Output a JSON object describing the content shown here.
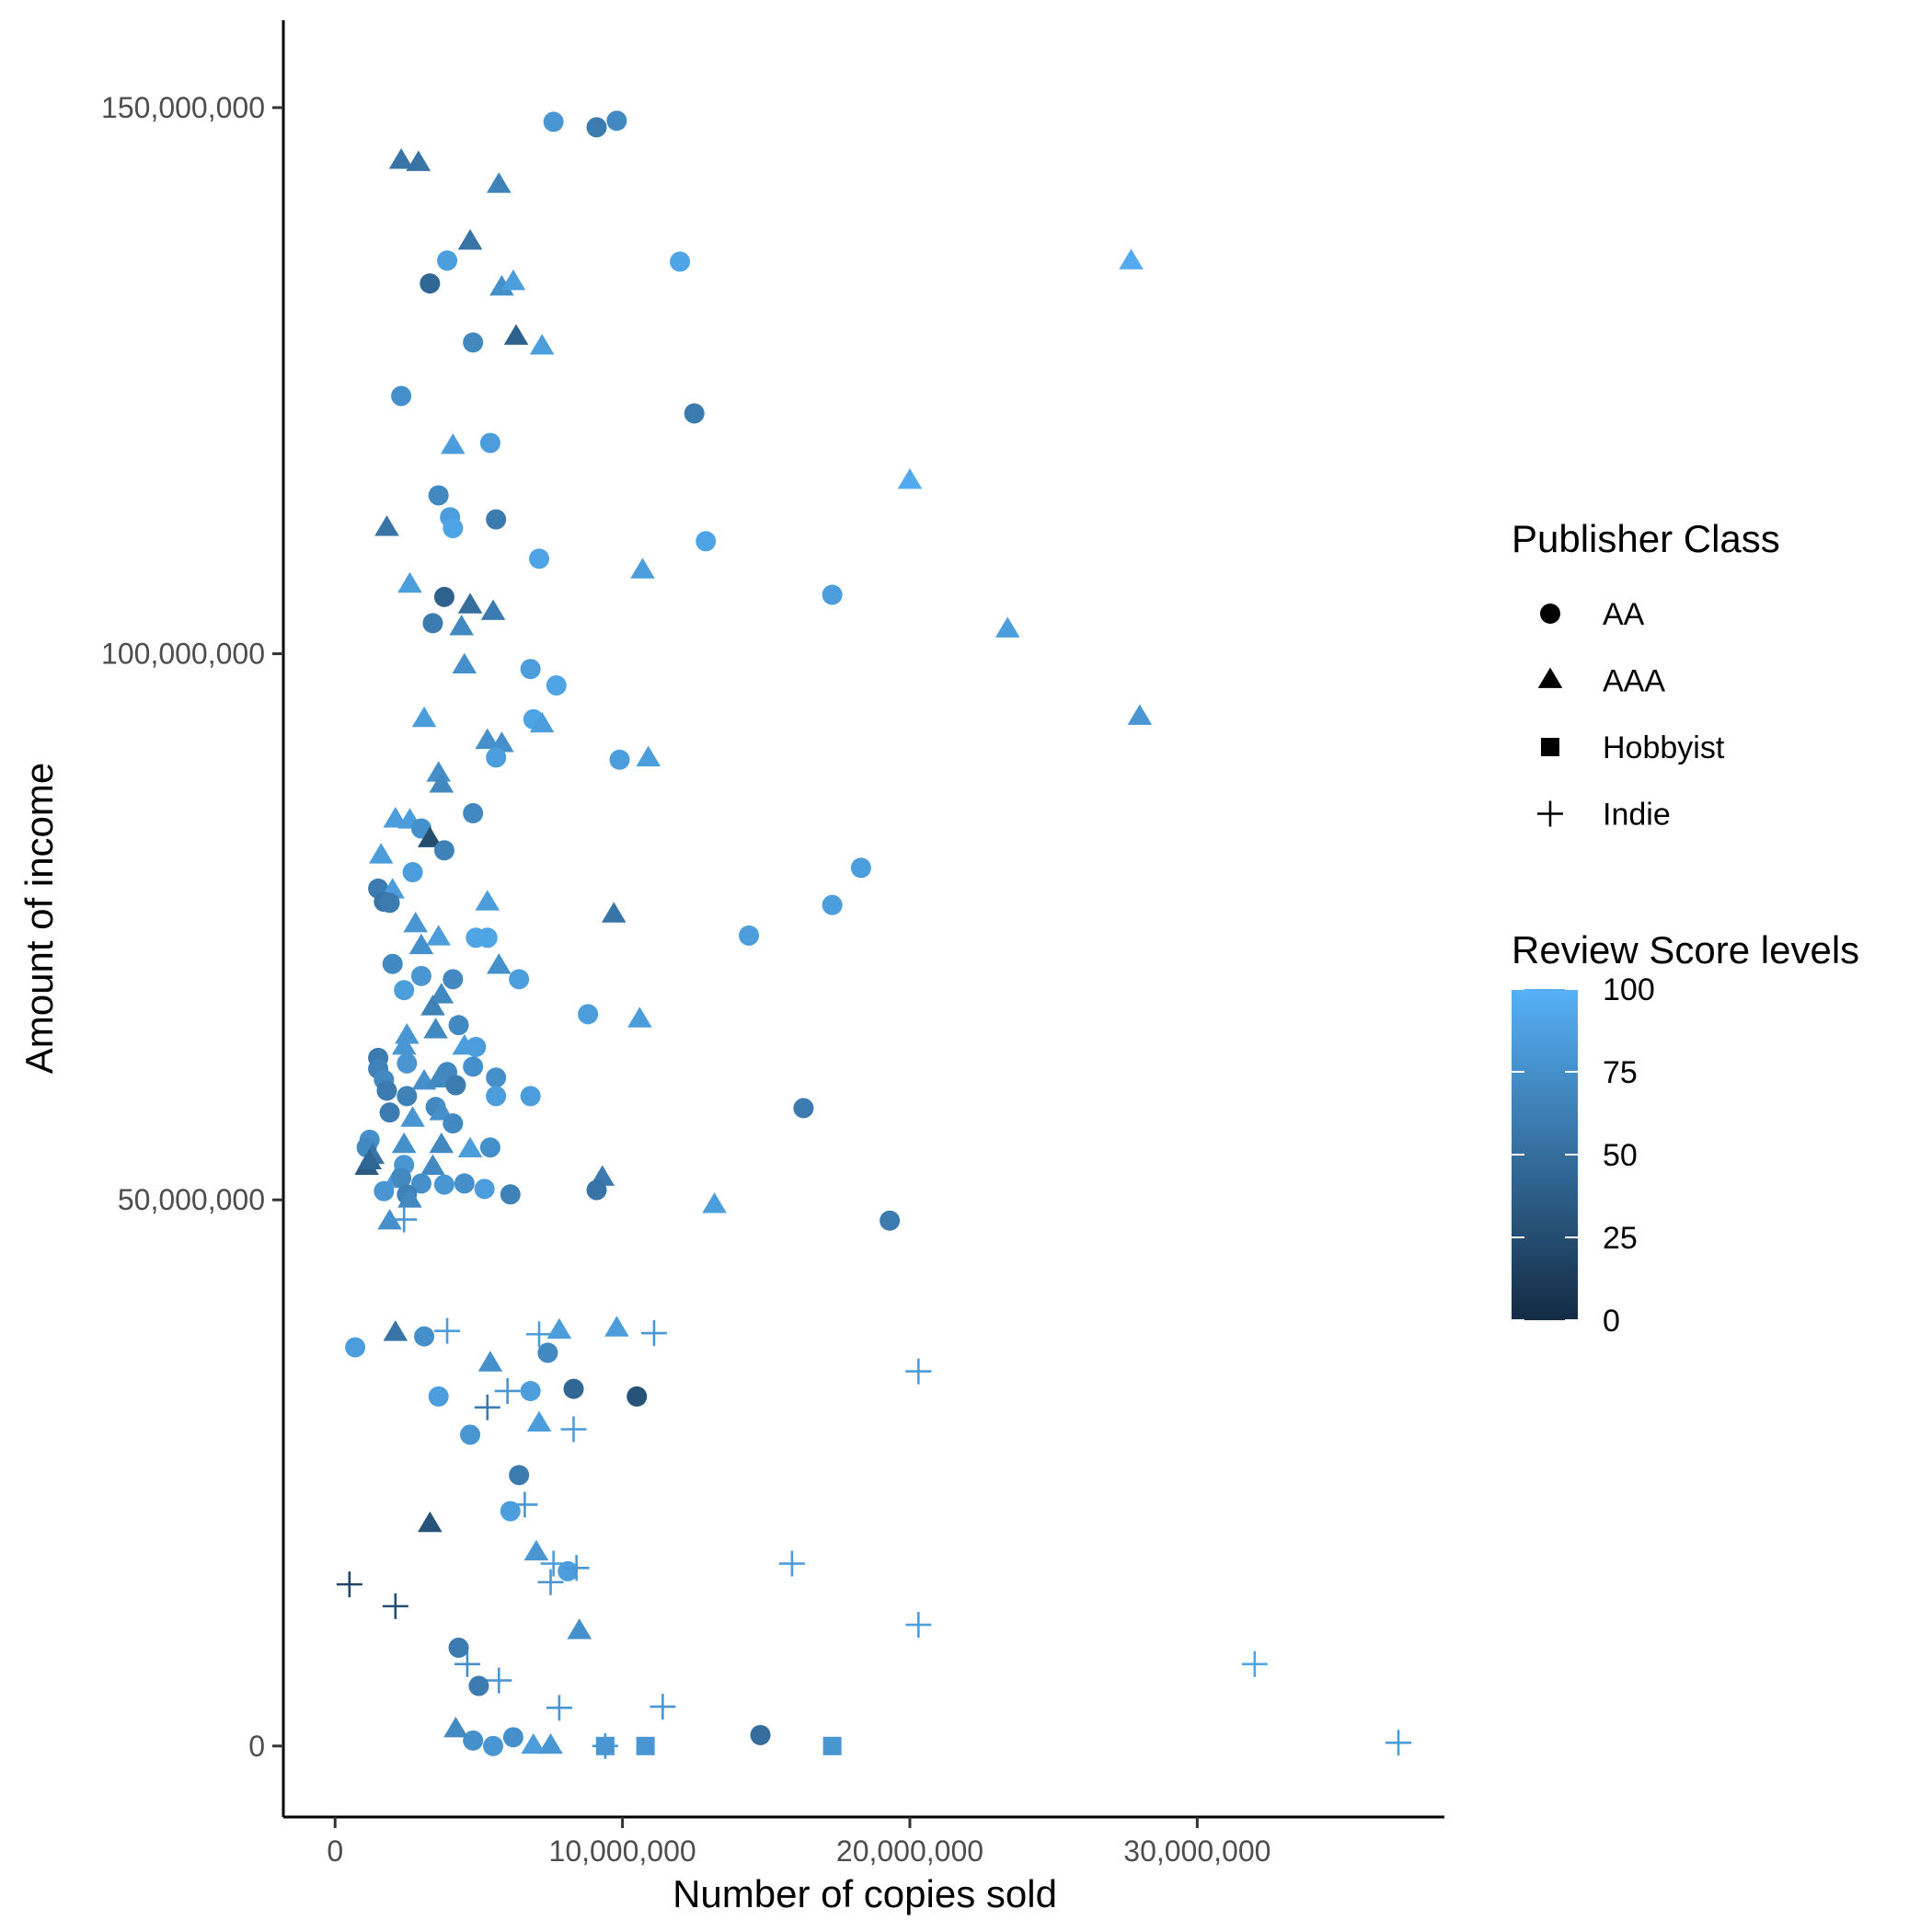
{
  "chart_data": {
    "type": "scatter",
    "xlabel": "Number of copies sold",
    "ylabel": "Amount of income",
    "xlim": [
      -1800000,
      38600000
    ],
    "ylim": [
      -6500000,
      158000000
    ],
    "x_ticks": [
      0,
      10000000,
      20000000,
      30000000
    ],
    "x_tick_labels": [
      "0",
      "10,000,000",
      "20,000,000",
      "30,000,000"
    ],
    "y_ticks": [
      0,
      50000000,
      100000000,
      150000000
    ],
    "y_tick_labels": [
      "0",
      "50,000,000",
      "100,000,000",
      "150,000,000"
    ],
    "grid": false,
    "shape_legend": {
      "title": "Publisher Class",
      "entries": [
        {
          "label": "AA",
          "shape": "circle"
        },
        {
          "label": "AAA",
          "shape": "triangle"
        },
        {
          "label": "Hobbyist",
          "shape": "square"
        },
        {
          "label": "Indie",
          "shape": "plus"
        }
      ]
    },
    "color_legend": {
      "title": "Review Score levels",
      "min": 0,
      "max": 100,
      "ticks": [
        0,
        25,
        50,
        75,
        100
      ],
      "tick_labels": [
        "0",
        "25",
        "50",
        "75",
        "100"
      ],
      "low_color": "#132B43",
      "high_color": "#56B1F7"
    },
    "legend_position": "right",
    "columns": [
      "copies_sold",
      "income",
      "publisher_class",
      "review_score"
    ],
    "points": [
      [
        7600000,
        148700000,
        "AA",
        80
      ],
      [
        9100000,
        148200000,
        "AA",
        60
      ],
      [
        9800000,
        148800000,
        "AA",
        70
      ],
      [
        2300000,
        145100000,
        "AAA",
        55
      ],
      [
        2900000,
        144900000,
        "AAA",
        55
      ],
      [
        5700000,
        142900000,
        "AAA",
        65
      ],
      [
        4700000,
        137700000,
        "AAA",
        55
      ],
      [
        3900000,
        136000000,
        "AA",
        85
      ],
      [
        12000000,
        135900000,
        "AA",
        90
      ],
      [
        27700000,
        135900000,
        "AAA",
        95
      ],
      [
        3300000,
        133900000,
        "AA",
        45
      ],
      [
        5800000,
        133500000,
        "AAA",
        75
      ],
      [
        6200000,
        134000000,
        "AAA",
        85
      ],
      [
        6300000,
        129000000,
        "AAA",
        40
      ],
      [
        7200000,
        128100000,
        "AAA",
        85
      ],
      [
        4800000,
        128500000,
        "AA",
        70
      ],
      [
        2300000,
        123600000,
        "AA",
        75
      ],
      [
        12500000,
        122000000,
        "AA",
        60
      ],
      [
        4100000,
        119000000,
        "AAA",
        85
      ],
      [
        5400000,
        119300000,
        "AA",
        85
      ],
      [
        20000000,
        115800000,
        "AAA",
        95
      ],
      [
        3600000,
        114500000,
        "AA",
        70
      ],
      [
        4000000,
        112500000,
        "AA",
        85
      ],
      [
        4100000,
        111500000,
        "AA",
        90
      ],
      [
        5600000,
        112300000,
        "AA",
        60
      ],
      [
        1800000,
        111500000,
        "AAA",
        55
      ],
      [
        12900000,
        110300000,
        "AA",
        90
      ],
      [
        7100000,
        108700000,
        "AA",
        90
      ],
      [
        10700000,
        107600000,
        "AAA",
        85
      ],
      [
        2600000,
        106300000,
        "AAA",
        85
      ],
      [
        17300000,
        105400000,
        "AA",
        85
      ],
      [
        3800000,
        105200000,
        "AA",
        40
      ],
      [
        4700000,
        104400000,
        "AAA",
        50
      ],
      [
        5500000,
        103800000,
        "AAA",
        60
      ],
      [
        3400000,
        102800000,
        "AA",
        60
      ],
      [
        4400000,
        102400000,
        "AAA",
        70
      ],
      [
        23400000,
        102200000,
        "AAA",
        85
      ],
      [
        4500000,
        98900000,
        "AAA",
        75
      ],
      [
        6800000,
        98600000,
        "AA",
        85
      ],
      [
        7700000,
        97100000,
        "AA",
        90
      ],
      [
        28000000,
        94200000,
        "AAA",
        80
      ],
      [
        3100000,
        94000000,
        "AAA",
        85
      ],
      [
        6900000,
        94000000,
        "AA",
        90
      ],
      [
        7200000,
        93500000,
        "AAA",
        85
      ],
      [
        5300000,
        92000000,
        "AAA",
        75
      ],
      [
        5800000,
        91700000,
        "AAA",
        75
      ],
      [
        5600000,
        90500000,
        "AA",
        85
      ],
      [
        9900000,
        90300000,
        "AA",
        85
      ],
      [
        10900000,
        90400000,
        "AAA",
        85
      ],
      [
        3600000,
        89000000,
        "AAA",
        75
      ],
      [
        3700000,
        88000000,
        "AAA",
        70
      ],
      [
        4800000,
        85400000,
        "AA",
        70
      ],
      [
        2100000,
        84800000,
        "AAA",
        85
      ],
      [
        2600000,
        84700000,
        "AAA",
        85
      ],
      [
        3000000,
        84000000,
        "AA",
        75
      ],
      [
        3300000,
        83000000,
        "AAA",
        25
      ],
      [
        3800000,
        82000000,
        "AA",
        65
      ],
      [
        1600000,
        81500000,
        "AAA",
        85
      ],
      [
        18300000,
        80400000,
        "AA",
        85
      ],
      [
        2700000,
        80000000,
        "AA",
        85
      ],
      [
        1500000,
        78500000,
        "AA",
        60
      ],
      [
        2000000,
        78300000,
        "AAA",
        85
      ],
      [
        1700000,
        77300000,
        "AA",
        55
      ],
      [
        1900000,
        77200000,
        "AA",
        60
      ],
      [
        5300000,
        77200000,
        "AAA",
        85
      ],
      [
        17300000,
        77000000,
        "AA",
        85
      ],
      [
        9700000,
        76100000,
        "AAA",
        55
      ],
      [
        2800000,
        75200000,
        "AAA",
        80
      ],
      [
        14400000,
        74200000,
        "AA",
        85
      ],
      [
        3600000,
        74000000,
        "AAA",
        85
      ],
      [
        4900000,
        74000000,
        "AA",
        90
      ],
      [
        5300000,
        74000000,
        "AA",
        90
      ],
      [
        3000000,
        73200000,
        "AAA",
        75
      ],
      [
        2000000,
        71600000,
        "AA",
        70
      ],
      [
        5700000,
        71400000,
        "AAA",
        75
      ],
      [
        3000000,
        70500000,
        "AA",
        80
      ],
      [
        4100000,
        70200000,
        "AA",
        70
      ],
      [
        6400000,
        70200000,
        "AA",
        85
      ],
      [
        2400000,
        69200000,
        "AA",
        85
      ],
      [
        3700000,
        68700000,
        "AAA",
        70
      ],
      [
        3400000,
        67600000,
        "AAA",
        65
      ],
      [
        8800000,
        67000000,
        "AA",
        85
      ],
      [
        10600000,
        66500000,
        "AAA",
        85
      ],
      [
        4300000,
        66000000,
        "AA",
        70
      ],
      [
        2500000,
        65000000,
        "AAA",
        80
      ],
      [
        3500000,
        65500000,
        "AAA",
        70
      ],
      [
        2400000,
        64000000,
        "AAA",
        80
      ],
      [
        4500000,
        64000000,
        "AAA",
        85
      ],
      [
        4900000,
        64000000,
        "AA",
        85
      ],
      [
        1500000,
        63000000,
        "AA",
        60
      ],
      [
        1500000,
        62000000,
        "AA",
        65
      ],
      [
        2500000,
        62500000,
        "AA",
        80
      ],
      [
        3900000,
        61700000,
        "AA",
        70
      ],
      [
        4800000,
        62200000,
        "AA",
        75
      ],
      [
        5600000,
        61200000,
        "AA",
        75
      ],
      [
        1700000,
        61000000,
        "AA",
        70
      ],
      [
        3100000,
        60800000,
        "AAA",
        75
      ],
      [
        3600000,
        61000000,
        "AAA",
        70
      ],
      [
        4200000,
        60500000,
        "AA",
        60
      ],
      [
        1800000,
        60000000,
        "AA",
        60
      ],
      [
        2500000,
        59500000,
        "AA",
        65
      ],
      [
        5600000,
        59500000,
        "AA",
        85
      ],
      [
        6800000,
        59500000,
        "AA",
        85
      ],
      [
        3500000,
        58500000,
        "AA",
        70
      ],
      [
        3700000,
        58000000,
        "AAA",
        75
      ],
      [
        16300000,
        58400000,
        "AA",
        60
      ],
      [
        1900000,
        58000000,
        "AA",
        60
      ],
      [
        2700000,
        57400000,
        "AAA",
        80
      ],
      [
        4100000,
        57000000,
        "AA",
        70
      ],
      [
        1200000,
        55500000,
        "AA",
        75
      ],
      [
        1100000,
        54800000,
        "AA",
        70
      ],
      [
        2400000,
        55000000,
        "AAA",
        75
      ],
      [
        3700000,
        55000000,
        "AAA",
        70
      ],
      [
        4700000,
        54600000,
        "AAA",
        85
      ],
      [
        5400000,
        54800000,
        "AA",
        75
      ],
      [
        1300000,
        54000000,
        "AAA",
        55
      ],
      [
        1100000,
        53000000,
        "AAA",
        35
      ],
      [
        1200000,
        53500000,
        "AAA",
        45
      ],
      [
        2400000,
        53200000,
        "AA",
        80
      ],
      [
        3400000,
        53000000,
        "AAA",
        70
      ],
      [
        2100000,
        51800000,
        "AAA",
        85
      ],
      [
        2300000,
        52000000,
        "AA",
        70
      ],
      [
        3000000,
        51500000,
        "AA",
        75
      ],
      [
        3800000,
        51400000,
        "AA",
        80
      ],
      [
        4500000,
        51500000,
        "AA",
        75
      ],
      [
        5200000,
        51000000,
        "AA",
        85
      ],
      [
        9300000,
        52000000,
        "AAA",
        60
      ],
      [
        1700000,
        50800000,
        "AA",
        80
      ],
      [
        2500000,
        50500000,
        "AA",
        65
      ],
      [
        6100000,
        50500000,
        "AA",
        65
      ],
      [
        9100000,
        50900000,
        "AA",
        55
      ],
      [
        2600000,
        50000000,
        "AAA",
        70
      ],
      [
        13200000,
        49500000,
        "AAA",
        85
      ],
      [
        1900000,
        48000000,
        "AAA",
        75
      ],
      [
        2400000,
        48200000,
        "Indie",
        80
      ],
      [
        19300000,
        48100000,
        "AA",
        60
      ],
      [
        3900000,
        38000000,
        "Indie",
        85
      ],
      [
        7100000,
        37700000,
        "Indie",
        85
      ],
      [
        7800000,
        38000000,
        "AAA",
        85
      ],
      [
        9800000,
        38200000,
        "AAA",
        85
      ],
      [
        11100000,
        37800000,
        "Indie",
        80
      ],
      [
        2100000,
        37800000,
        "AAA",
        55
      ],
      [
        3100000,
        37500000,
        "AA",
        75
      ],
      [
        7400000,
        36000000,
        "AA",
        70
      ],
      [
        700000,
        36500000,
        "AA",
        85
      ],
      [
        5400000,
        35000000,
        "AAA",
        75
      ],
      [
        20300000,
        34300000,
        "Indie",
        85
      ],
      [
        8300000,
        32700000,
        "AA",
        45
      ],
      [
        10500000,
        32000000,
        "AA",
        30
      ],
      [
        6000000,
        32500000,
        "Indie",
        80
      ],
      [
        3600000,
        32000000,
        "AA",
        85
      ],
      [
        6800000,
        32500000,
        "AA",
        85
      ],
      [
        5300000,
        31000000,
        "Indie",
        60
      ],
      [
        7100000,
        29500000,
        "AAA",
        85
      ],
      [
        8300000,
        29000000,
        "Indie",
        85
      ],
      [
        4700000,
        28500000,
        "AA",
        80
      ],
      [
        6400000,
        24800000,
        "AA",
        60
      ],
      [
        6600000,
        22100000,
        "Indie",
        80
      ],
      [
        6100000,
        21500000,
        "AA",
        85
      ],
      [
        3300000,
        20300000,
        "AAA",
        30
      ],
      [
        7000000,
        17700000,
        "AAA",
        80
      ],
      [
        7600000,
        16700000,
        "Indie",
        85
      ],
      [
        8100000,
        16000000,
        "AA",
        85
      ],
      [
        8400000,
        16300000,
        "Indie",
        80
      ],
      [
        15900000,
        16700000,
        "Indie",
        85
      ],
      [
        7500000,
        15000000,
        "Indie",
        80
      ],
      [
        20300000,
        11100000,
        "Indie",
        85
      ],
      [
        8500000,
        10500000,
        "AAA",
        75
      ],
      [
        32000000,
        7500000,
        "Indie",
        90
      ],
      [
        37000000,
        300000,
        "Indie",
        85
      ],
      [
        14800000,
        1000000,
        "AA",
        50
      ],
      [
        17300000,
        0,
        "Hobbyist",
        80
      ],
      [
        10800000,
        0,
        "Hobbyist",
        80
      ],
      [
        9400000,
        0,
        "Hobbyist",
        80
      ],
      [
        9400000,
        0,
        "Indie",
        80
      ],
      [
        11400000,
        3600000,
        "Indie",
        80
      ],
      [
        7800000,
        3500000,
        "Indie",
        80
      ],
      [
        6200000,
        800000,
        "AA",
        75
      ],
      [
        5500000,
        0,
        "AA",
        80
      ],
      [
        4800000,
        500000,
        "AA",
        75
      ],
      [
        6900000,
        0,
        "AAA",
        85
      ],
      [
        7500000,
        0,
        "AAA",
        80
      ],
      [
        4200000,
        1500000,
        "AAA",
        70
      ],
      [
        5700000,
        6000000,
        "Indie",
        80
      ],
      [
        4600000,
        7500000,
        "Indie",
        75
      ],
      [
        4300000,
        9000000,
        "AA",
        60
      ],
      [
        5000000,
        5500000,
        "AA",
        60
      ],
      [
        2100000,
        12800000,
        "Indie",
        25
      ],
      [
        500000,
        14800000,
        "Indie",
        20
      ]
    ]
  }
}
